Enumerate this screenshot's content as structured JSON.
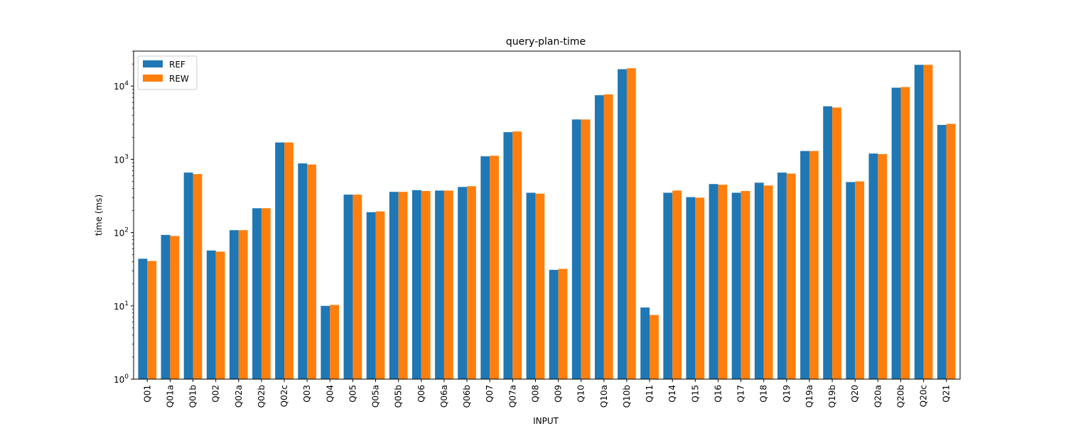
{
  "chart_data": {
    "type": "bar",
    "title": "query-plan-time",
    "xlabel": "INPUT",
    "ylabel": "time (ms)",
    "yscale": "log",
    "ylim": [
      1,
      30000
    ],
    "yticks": [
      {
        "value": 1,
        "base": "10",
        "exp": "0"
      },
      {
        "value": 10,
        "base": "10",
        "exp": "1"
      },
      {
        "value": 100,
        "base": "10",
        "exp": "2"
      },
      {
        "value": 1000,
        "base": "10",
        "exp": "3"
      },
      {
        "value": 10000,
        "base": "10",
        "exp": "4"
      }
    ],
    "legend_position": "top-left",
    "categories": [
      "Q01",
      "Q01a",
      "Q01b",
      "Q02",
      "Q02a",
      "Q02b",
      "Q02c",
      "Q03",
      "Q04",
      "Q05",
      "Q05a",
      "Q05b",
      "Q06",
      "Q06a",
      "Q06b",
      "Q07",
      "Q07a",
      "Q08",
      "Q09",
      "Q10",
      "Q10a",
      "Q10b",
      "Q11",
      "Q14",
      "Q15",
      "Q16",
      "Q17",
      "Q18",
      "Q19",
      "Q19a",
      "Q19b",
      "Q20",
      "Q20a",
      "Q20b",
      "Q20c",
      "Q21"
    ],
    "series": [
      {
        "name": "REF",
        "color": "#1f77b4",
        "values": [
          44,
          93,
          660,
          57,
          108,
          215,
          1700,
          880,
          10,
          330,
          190,
          360,
          380,
          375,
          420,
          1100,
          2350,
          350,
          31,
          3500,
          7500,
          17000,
          9.5,
          350,
          305,
          460,
          350,
          480,
          660,
          1300,
          5300,
          490,
          1200,
          9500,
          19500,
          2950
        ]
      },
      {
        "name": "REW",
        "color": "#ff7f0e",
        "values": [
          41,
          90,
          630,
          55,
          108,
          215,
          1700,
          850,
          10.3,
          330,
          195,
          360,
          370,
          375,
          430,
          1120,
          2400,
          340,
          32,
          3500,
          7700,
          17500,
          7.5,
          375,
          300,
          450,
          370,
          440,
          640,
          1300,
          5100,
          500,
          1180,
          9700,
          19500,
          3050
        ]
      }
    ]
  }
}
